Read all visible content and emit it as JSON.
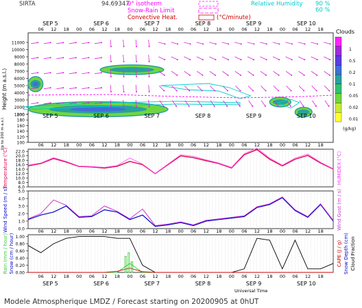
{
  "header": {
    "station": "SIRTA",
    "code": "94.69347",
    "legend_left": [
      {
        "label": "0° isotherm",
        "color": "#ff00ff"
      },
      {
        "label": "Snow-Rain Limit",
        "color": "#ff00ff"
      },
      {
        "label": "Convective Heat.",
        "unit": "(°C/minute)",
        "color": "#cc0000"
      }
    ],
    "legend_right": {
      "label": "Relative Humidity",
      "values": [
        "90 %",
        "60 %"
      ],
      "color": "#00cccc"
    }
  },
  "day_labels": [
    "SEP 5",
    "SEP 6",
    "SEP 7",
    "SEP 8",
    "SEP 9",
    "SEP 10"
  ],
  "hour_ticks": [
    "06",
    "12",
    "18",
    "00",
    "06",
    "12",
    "18",
    "00",
    "06",
    "12",
    "18",
    "00",
    "06",
    "12",
    "18",
    "00",
    "06",
    "12",
    "18",
    "00",
    "06",
    "12",
    "18"
  ],
  "clouds_scale": {
    "title": "Clouds",
    "labels": [
      "1",
      "0.5",
      "0.2",
      "0.1",
      "0.05",
      "0.02",
      "0.01"
    ],
    "unit": "(g/kg)",
    "colors": [
      "#ff22ff",
      "#9d2bd9",
      "#5b3ce0",
      "#3f6fd6",
      "#2aa0a0",
      "#33c070",
      "#70d640",
      "#c6ea3a",
      "#ffff33"
    ]
  },
  "footer": {
    "universal_time": "Universal Time",
    "title": "Modele Atmospherique LMDZ / Forecast starting on 20200905 at 0hUT"
  },
  "chart_data": [
    {
      "type": "heatmap",
      "name": "Cloud cross-section",
      "ylabel": "Height  (m a.s.l.)",
      "ylabel2": "Up to 200 m a.s.l.",
      "yticks": [
        "11000",
        "10000",
        "9000",
        "8000",
        "7000",
        "6000",
        "5000",
        "4000",
        "3000",
        "2000",
        "1000",
        "200",
        "180",
        "160",
        "140",
        "120",
        "100"
      ],
      "cloud_layers_m": [
        {
          "from_h": 0,
          "to_h": 66,
          "z": 1700,
          "level": 0.2
        },
        {
          "from_h": 34,
          "to_h": 64,
          "z": 7200,
          "level": 0.05
        },
        {
          "from_h": 0,
          "to_h": 7,
          "z": 5200,
          "level": 0.3
        },
        {
          "from_h": 114,
          "to_h": 124,
          "z": 2700,
          "level": 0.1
        },
        {
          "from_h": 126,
          "to_h": 134,
          "z": 1300,
          "level": 0.05
        }
      ]
    },
    {
      "type": "line",
      "name": "Temperature",
      "ylabel": "Temperature (°C)",
      "ylabel_right": "HUMIDEX (°C)",
      "yticks": [
        "22.0",
        "20.0",
        "18.0",
        "16.0",
        "14.0",
        "12.0",
        "10.0",
        "8.0",
        "6.0"
      ],
      "ylim": [
        6,
        23
      ],
      "x_hours": [
        0,
        6,
        12,
        18,
        24,
        30,
        36,
        42,
        48,
        54,
        60,
        66,
        72,
        78,
        84,
        90,
        96,
        102,
        108,
        114,
        120,
        126,
        132,
        138,
        144
      ],
      "series": [
        {
          "name": "Temperature",
          "color": "#e0004a",
          "values": [
            15.5,
            16.5,
            18.8,
            17.2,
            15.2,
            15.0,
            14.5,
            15.3,
            17.5,
            16.0,
            12.0,
            16.0,
            20.0,
            19.2,
            17.8,
            16.5,
            14.5,
            20.5,
            22.8,
            18.5,
            15.5,
            18.5,
            20.2,
            16.8,
            14.0
          ]
        },
        {
          "name": "HUMIDEX",
          "color": "#ff66ff",
          "values": [
            15.8,
            16.8,
            19.2,
            17.5,
            15.4,
            15.2,
            14.8,
            15.6,
            19.0,
            16.3,
            12.1,
            16.3,
            20.5,
            19.8,
            18.2,
            16.8,
            14.8,
            21.0,
            23.5,
            19.0,
            15.8,
            19.0,
            20.8,
            17.1,
            14.2
          ]
        }
      ]
    },
    {
      "type": "line",
      "name": "Wind",
      "ylabel": "Wind Speed (m / s)",
      "ylabel_right": "Wind Gust (m / s)",
      "yticks": [
        "5.0",
        "4.0",
        "3.0",
        "2.0",
        "1.0",
        "0.0"
      ],
      "ylim": [
        0,
        5
      ],
      "x_hours": [
        0,
        6,
        12,
        18,
        24,
        30,
        36,
        42,
        48,
        54,
        60,
        66,
        72,
        78,
        84,
        90,
        96,
        102,
        108,
        114,
        120,
        126,
        132,
        138,
        144
      ],
      "series": [
        {
          "name": "Wind Speed",
          "color": "#0000cc",
          "values": [
            1.2,
            1.8,
            2.2,
            3.0,
            1.5,
            1.6,
            2.5,
            2.2,
            1.2,
            1.8,
            0.3,
            0.5,
            0.8,
            0.4,
            1.0,
            1.2,
            1.4,
            1.6,
            2.8,
            3.2,
            4.1,
            2.4,
            1.5,
            3.2,
            1.0
          ]
        },
        {
          "name": "Wind Gust",
          "color": "#cc33cc",
          "values": [
            1.3,
            2.0,
            3.8,
            3.1,
            1.6,
            1.7,
            3.0,
            2.3,
            1.3,
            2.6,
            0.4,
            0.6,
            0.9,
            0.5,
            1.1,
            1.3,
            1.5,
            1.7,
            2.9,
            3.3,
            4.2,
            2.5,
            1.6,
            3.3,
            1.1
          ]
        }
      ]
    },
    {
      "type": "line",
      "name": "Precipitation",
      "ylabel": "Rain (mm / hour)",
      "ylabel2": "Snow (cm / hour)",
      "ylabel_right": "CAPE (J / g)",
      "ylabel_right2": "Snow Depth (cm)",
      "ylabel_right3": "Cloud Fraction",
      "yticks": [
        "1.00",
        "0.80",
        "0.60",
        "0.40",
        "0.20",
        "0.00"
      ],
      "ylim": [
        0,
        1.05
      ],
      "x_hours": [
        0,
        6,
        12,
        18,
        24,
        30,
        36,
        42,
        48,
        54,
        60,
        66,
        72,
        78,
        84,
        90,
        96,
        102,
        108,
        114,
        120,
        126,
        132,
        138,
        144
      ],
      "series": [
        {
          "name": "Cloud Fraction",
          "color": "#000000",
          "values": [
            0.75,
            0.55,
            0.8,
            0.95,
            1.0,
            1.0,
            1.0,
            0.95,
            0.95,
            0.2,
            0.0,
            0.0,
            0.0,
            0.0,
            0.0,
            0.0,
            0.0,
            0.1,
            0.95,
            0.9,
            0.1,
            0.9,
            0.1,
            0.1,
            0.25
          ]
        },
        {
          "name": "Rain",
          "color": "#33cc33",
          "values": [
            0,
            0,
            0,
            0,
            0,
            0,
            0,
            0,
            0.25,
            0,
            0,
            0,
            0,
            0,
            0,
            0,
            0,
            0,
            0,
            0,
            0,
            0,
            0,
            0,
            0
          ]
        },
        {
          "name": "CAPE",
          "color": "#cc0000",
          "values": [
            0,
            0,
            0,
            0,
            0,
            0,
            0,
            0.03,
            0.12,
            0.02,
            0,
            0,
            0,
            0,
            0,
            0,
            0,
            0,
            0,
            0,
            0,
            0,
            0,
            0,
            0
          ]
        }
      ]
    }
  ]
}
